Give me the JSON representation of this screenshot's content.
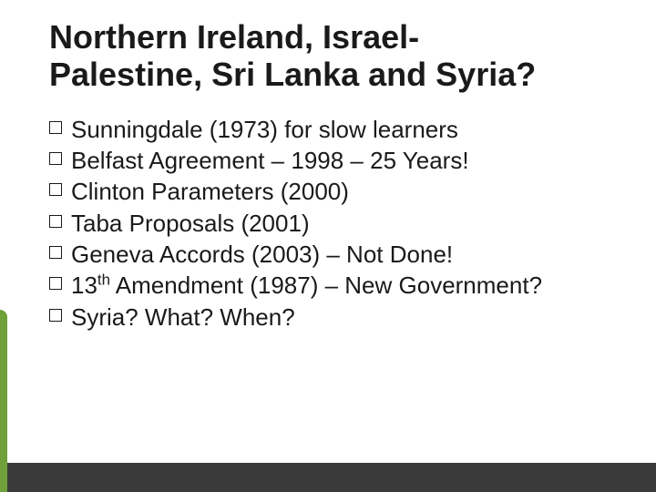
{
  "slide": {
    "title_line1": "Northern Ireland, Israel-",
    "title_line2": "Palestine, Sri Lanka and Syria?",
    "title_fontsize": 36,
    "title_color": "#1a1a1a",
    "bullets": [
      {
        "text": "Sunningdale (1973) for slow learners"
      },
      {
        "text": "Belfast Agreement – 1998 – 25 Years!"
      },
      {
        "text": "Clinton Parameters (2000)"
      },
      {
        "text": "Taba Proposals (2001)"
      },
      {
        "text": "Geneva Accords (2003) – Not Done!"
      },
      {
        "text_html": "13<sup>th</sup> Amendment (1987) – New Government?"
      },
      {
        "text": "Syria? What? When?"
      }
    ],
    "bullet_fontsize": 26,
    "bullet_color": "#1a1a1a",
    "bullet_box_color": "#1a1a1a",
    "background_color": "#ffffff",
    "panel_color": "#ffffff",
    "strip_color": "#3a3a3a",
    "accent_color": "#6fa03a"
  }
}
